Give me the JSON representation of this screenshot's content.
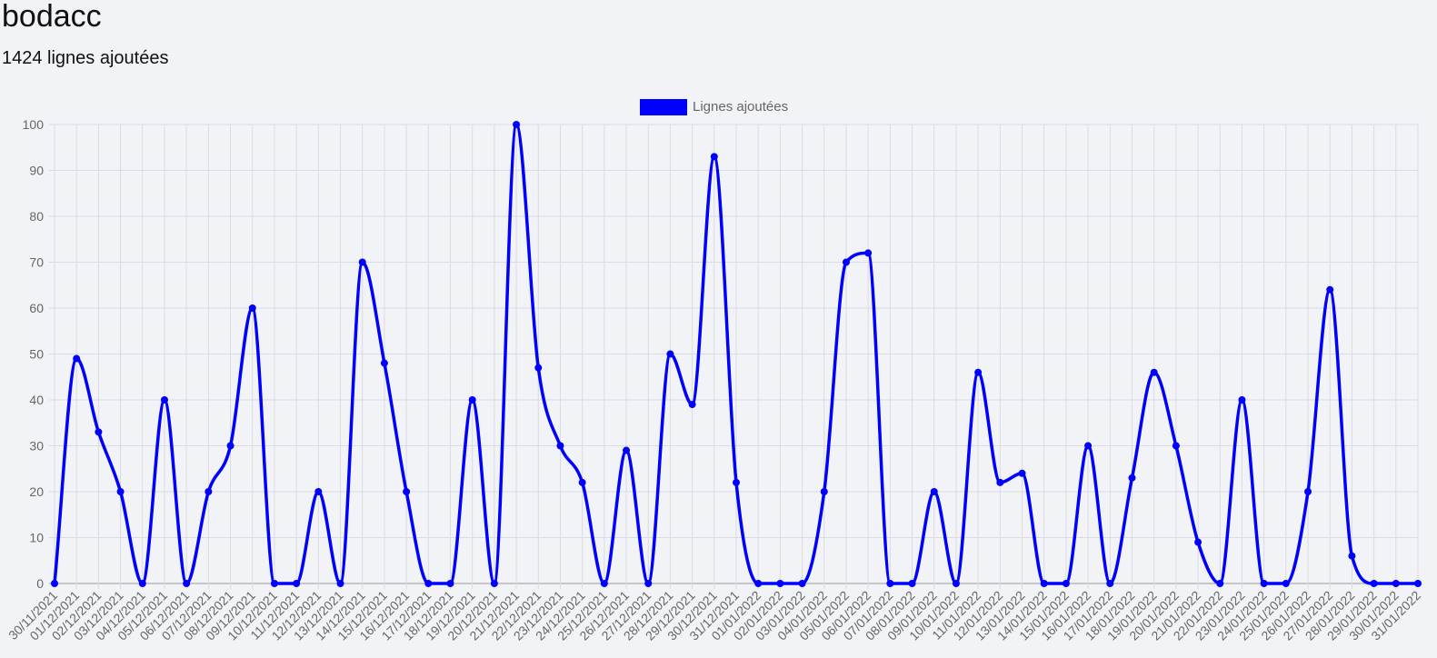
{
  "page": {
    "title": "bodacc",
    "subtitle": "1424 lignes ajoutées"
  },
  "colors": {
    "series": "#0000ff",
    "grid": "#d9dbe0",
    "axis": "#999999",
    "text": "#666666"
  },
  "chart_data": {
    "type": "line",
    "title": "",
    "xlabel": "",
    "ylabel": "",
    "ylim": [
      0,
      100
    ],
    "yticks": [
      0,
      10,
      20,
      30,
      40,
      50,
      60,
      70,
      80,
      90,
      100
    ],
    "grid": true,
    "legend_position": "top-center",
    "smooth": true,
    "x": [
      "30/11/2021",
      "01/12/2021",
      "02/12/2021",
      "03/12/2021",
      "04/12/2021",
      "05/12/2021",
      "06/12/2021",
      "07/12/2021",
      "08/12/2021",
      "09/12/2021",
      "10/12/2021",
      "11/12/2021",
      "12/12/2021",
      "13/12/2021",
      "14/12/2021",
      "15/12/2021",
      "16/12/2021",
      "17/12/2021",
      "18/12/2021",
      "19/12/2021",
      "20/12/2021",
      "21/12/2021",
      "22/12/2021",
      "23/12/2021",
      "24/12/2021",
      "25/12/2021",
      "26/12/2021",
      "27/12/2021",
      "28/12/2021",
      "29/12/2021",
      "30/12/2021",
      "31/12/2021",
      "01/01/2022",
      "02/01/2022",
      "03/01/2022",
      "04/01/2022",
      "05/01/2022",
      "06/01/2022",
      "07/01/2022",
      "08/01/2022",
      "09/01/2022",
      "10/01/2022",
      "11/01/2022",
      "12/01/2022",
      "13/01/2022",
      "14/01/2022",
      "15/01/2022",
      "16/01/2022",
      "17/01/2022",
      "18/01/2022",
      "19/01/2022",
      "20/01/2022",
      "21/01/2022",
      "22/01/2022",
      "23/01/2022",
      "24/01/2022",
      "25/01/2022",
      "26/01/2022",
      "27/01/2022",
      "28/01/2022",
      "29/01/2022",
      "30/01/2022",
      "31/01/2022"
    ],
    "series": [
      {
        "name": "Lignes ajoutées",
        "color": "#0000ff",
        "values": [
          0,
          49,
          33,
          20,
          0,
          40,
          0,
          20,
          30,
          60,
          0,
          0,
          20,
          0,
          70,
          48,
          20,
          0,
          0,
          40,
          0,
          100,
          47,
          30,
          22,
          0,
          29,
          0,
          50,
          39,
          93,
          22,
          0,
          0,
          0,
          20,
          70,
          72,
          0,
          0,
          20,
          0,
          46,
          22,
          24,
          0,
          0,
          30,
          0,
          23,
          46,
          30,
          9,
          0,
          40,
          0,
          0,
          20,
          64,
          6,
          0,
          0,
          0
        ]
      }
    ]
  }
}
